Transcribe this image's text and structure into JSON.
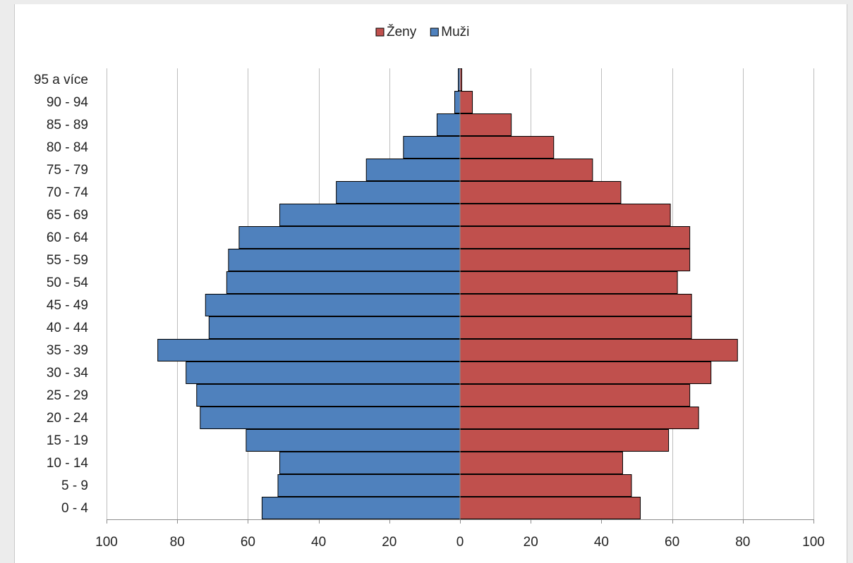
{
  "chart_data": {
    "type": "bar",
    "orientation": "horizontal",
    "subtype": "population-pyramid",
    "categories": [
      "0 - 4",
      "5 - 9",
      "10 - 14",
      "15 - 19",
      "20 - 24",
      "25 - 29",
      "30 - 34",
      "35 - 39",
      "40 - 44",
      "45 - 49",
      "50 - 54",
      "55 - 59",
      "60 - 64",
      "65 - 69",
      "70 - 74",
      "75 - 79",
      "80 - 84",
      "85 - 89",
      "90 - 94",
      "95 a více"
    ],
    "series": [
      {
        "name": "Ženy",
        "side": "right",
        "color": "#c0504d",
        "values": [
          51,
          48.5,
          46,
          59,
          67.5,
          65,
          71,
          78.5,
          65.5,
          65.5,
          61.5,
          65,
          65,
          59.5,
          45.5,
          37.5,
          26.5,
          14.5,
          3.5,
          0.5
        ]
      },
      {
        "name": "Muži",
        "side": "left",
        "color": "#4f81bd",
        "values": [
          56,
          51.5,
          51,
          60.5,
          73.5,
          74.5,
          77.5,
          85.5,
          71,
          72,
          66,
          65.5,
          62.5,
          51,
          35,
          26.5,
          16,
          6.5,
          1.5,
          0.5
        ]
      }
    ],
    "xlim": [
      -100,
      100
    ],
    "x_ticks": [
      -100,
      -80,
      -60,
      -40,
      -20,
      0,
      20,
      40,
      60,
      80,
      100
    ],
    "x_tick_labels": [
      "100",
      "80",
      "60",
      "40",
      "20",
      "0",
      "20",
      "40",
      "60",
      "80",
      "100"
    ],
    "grid": "vertical",
    "legend": "top-center",
    "title": "",
    "xlabel": "",
    "ylabel": ""
  }
}
